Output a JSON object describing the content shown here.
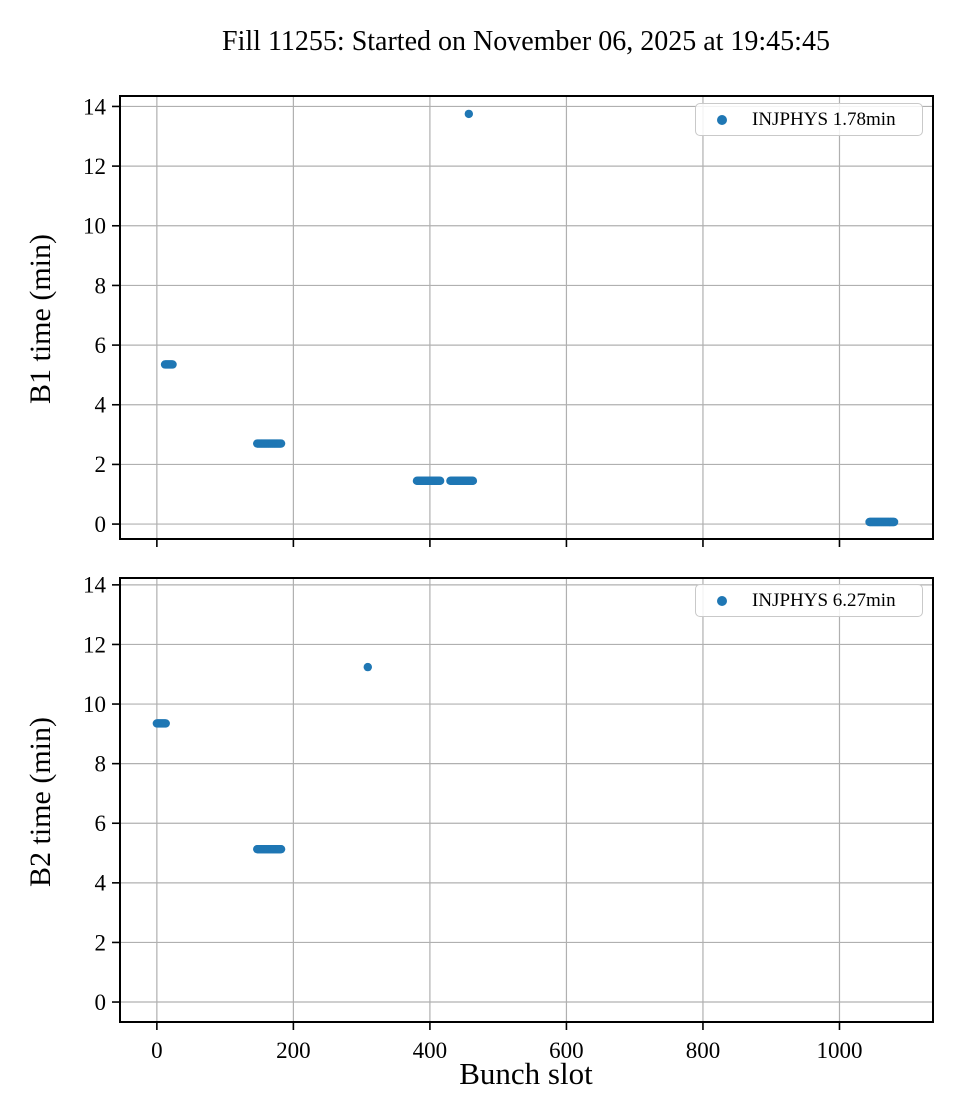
{
  "title": "Fill 11255: Started on November 06, 2025 at 19:45:45",
  "xlabel": "Bunch slot",
  "colors": {
    "marker": "#1f77b4",
    "grid": "#b0b0b0",
    "spine": "#000000",
    "legend_border": "#c9c9c9",
    "text": "#000000"
  },
  "chart_data": [
    {
      "type": "scatter",
      "name": "B1",
      "ylabel": "B1 time (min)",
      "legend": "INJPHYS 1.78min",
      "legend_position": "upper right",
      "grid": true,
      "xlim": [
        -54,
        1137
      ],
      "ylim": [
        -0.5,
        14.35
      ],
      "xticks": [
        0,
        200,
        400,
        600,
        800,
        1000
      ],
      "yticks": [
        0,
        2,
        4,
        6,
        8,
        10,
        12,
        14
      ],
      "show_xtick_labels": false,
      "clusters": [
        {
          "slots": [
            12,
            23
          ],
          "time_min": 5.35
        },
        {
          "slots": [
            147,
            182
          ],
          "time_min": 2.7
        },
        {
          "slots": [
            381,
            415
          ],
          "time_min": 1.45
        },
        {
          "slots": [
            430,
            463
          ],
          "time_min": 1.45
        },
        {
          "slots": [
            1044,
            1080
          ],
          "time_min": 0.07
        }
      ],
      "points": [
        {
          "slot": 457,
          "time_min": 13.75
        }
      ]
    },
    {
      "type": "scatter",
      "name": "B2",
      "ylabel": "B2 time (min)",
      "legend": "INJPHYS 6.27min",
      "legend_position": "upper right",
      "grid": true,
      "xlim": [
        -54,
        1137
      ],
      "ylim": [
        -0.67,
        14.23
      ],
      "xticks": [
        0,
        200,
        400,
        600,
        800,
        1000
      ],
      "yticks": [
        0,
        2,
        4,
        6,
        8,
        10,
        12,
        14
      ],
      "show_xtick_labels": true,
      "clusters": [
        {
          "slots": [
            0,
            13
          ],
          "time_min": 9.35
        },
        {
          "slots": [
            147,
            182
          ],
          "time_min": 5.13
        }
      ],
      "points": [
        {
          "slot": 309,
          "time_min": 11.24
        }
      ]
    }
  ]
}
